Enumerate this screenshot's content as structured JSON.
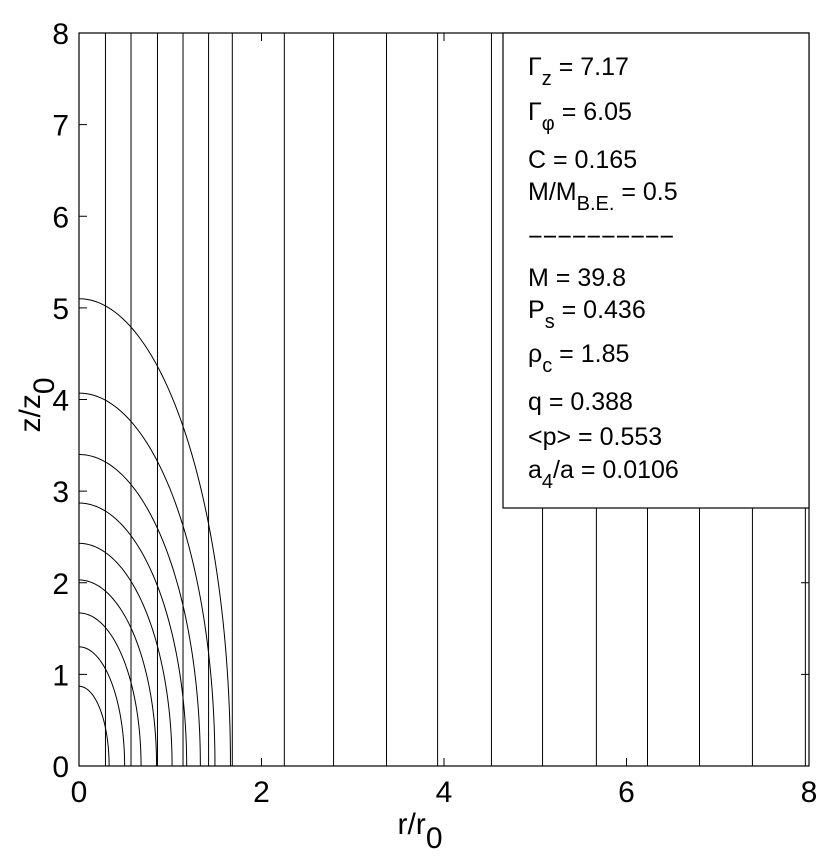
{
  "chart_data": {
    "type": "contour",
    "xlabel": {
      "text": "r/r",
      "sub": "0"
    },
    "ylabel": {
      "text": "z/z",
      "sub": "0"
    },
    "xlim": [
      0,
      8
    ],
    "ylim": [
      0,
      8
    ],
    "xticks": [
      0,
      2,
      4,
      6,
      8
    ],
    "yticks": [
      0,
      1,
      2,
      3,
      4,
      5,
      6,
      7,
      8
    ],
    "color": "#000000",
    "field_lines": {
      "r": [
        0.29,
        0.57,
        0.86,
        1.14,
        1.42,
        1.68,
        2.25,
        2.79,
        3.37,
        3.93,
        4.52,
        5.08,
        5.67,
        6.23,
        6.8,
        7.38,
        7.96
      ]
    },
    "density_contours": {
      "r_intercept": [
        0.33,
        0.5,
        0.68,
        0.85,
        1.02,
        1.18,
        1.33,
        1.49,
        1.66
      ],
      "z_intercept": [
        0.87,
        1.3,
        1.67,
        2.03,
        2.43,
        2.87,
        3.4,
        4.07,
        5.1
      ]
    },
    "annotations": [
      {
        "main": "Γ",
        "sub": "z",
        "tail": " = 7.17"
      },
      {
        "main": "Γ",
        "sub": "φ",
        "tail": " = 6.05"
      },
      {
        "main": "C = 0.165"
      },
      {
        "main": "M/M",
        "sub": "B.E.",
        "tail": " = 0.5"
      },
      {
        "main": "−−−−−−−−−−"
      },
      {
        "main": "M = 39.8"
      },
      {
        "main": "P",
        "sub": "s",
        "tail": " = 0.436"
      },
      {
        "main": "ρ",
        "sub": "c",
        "tail": " = 1.85"
      },
      {
        "main": "q = 0.388"
      },
      {
        "main": "<p> = 0.553"
      },
      {
        "main": "a",
        "sub": "4",
        "tail": "/a = 0.0106"
      }
    ]
  }
}
